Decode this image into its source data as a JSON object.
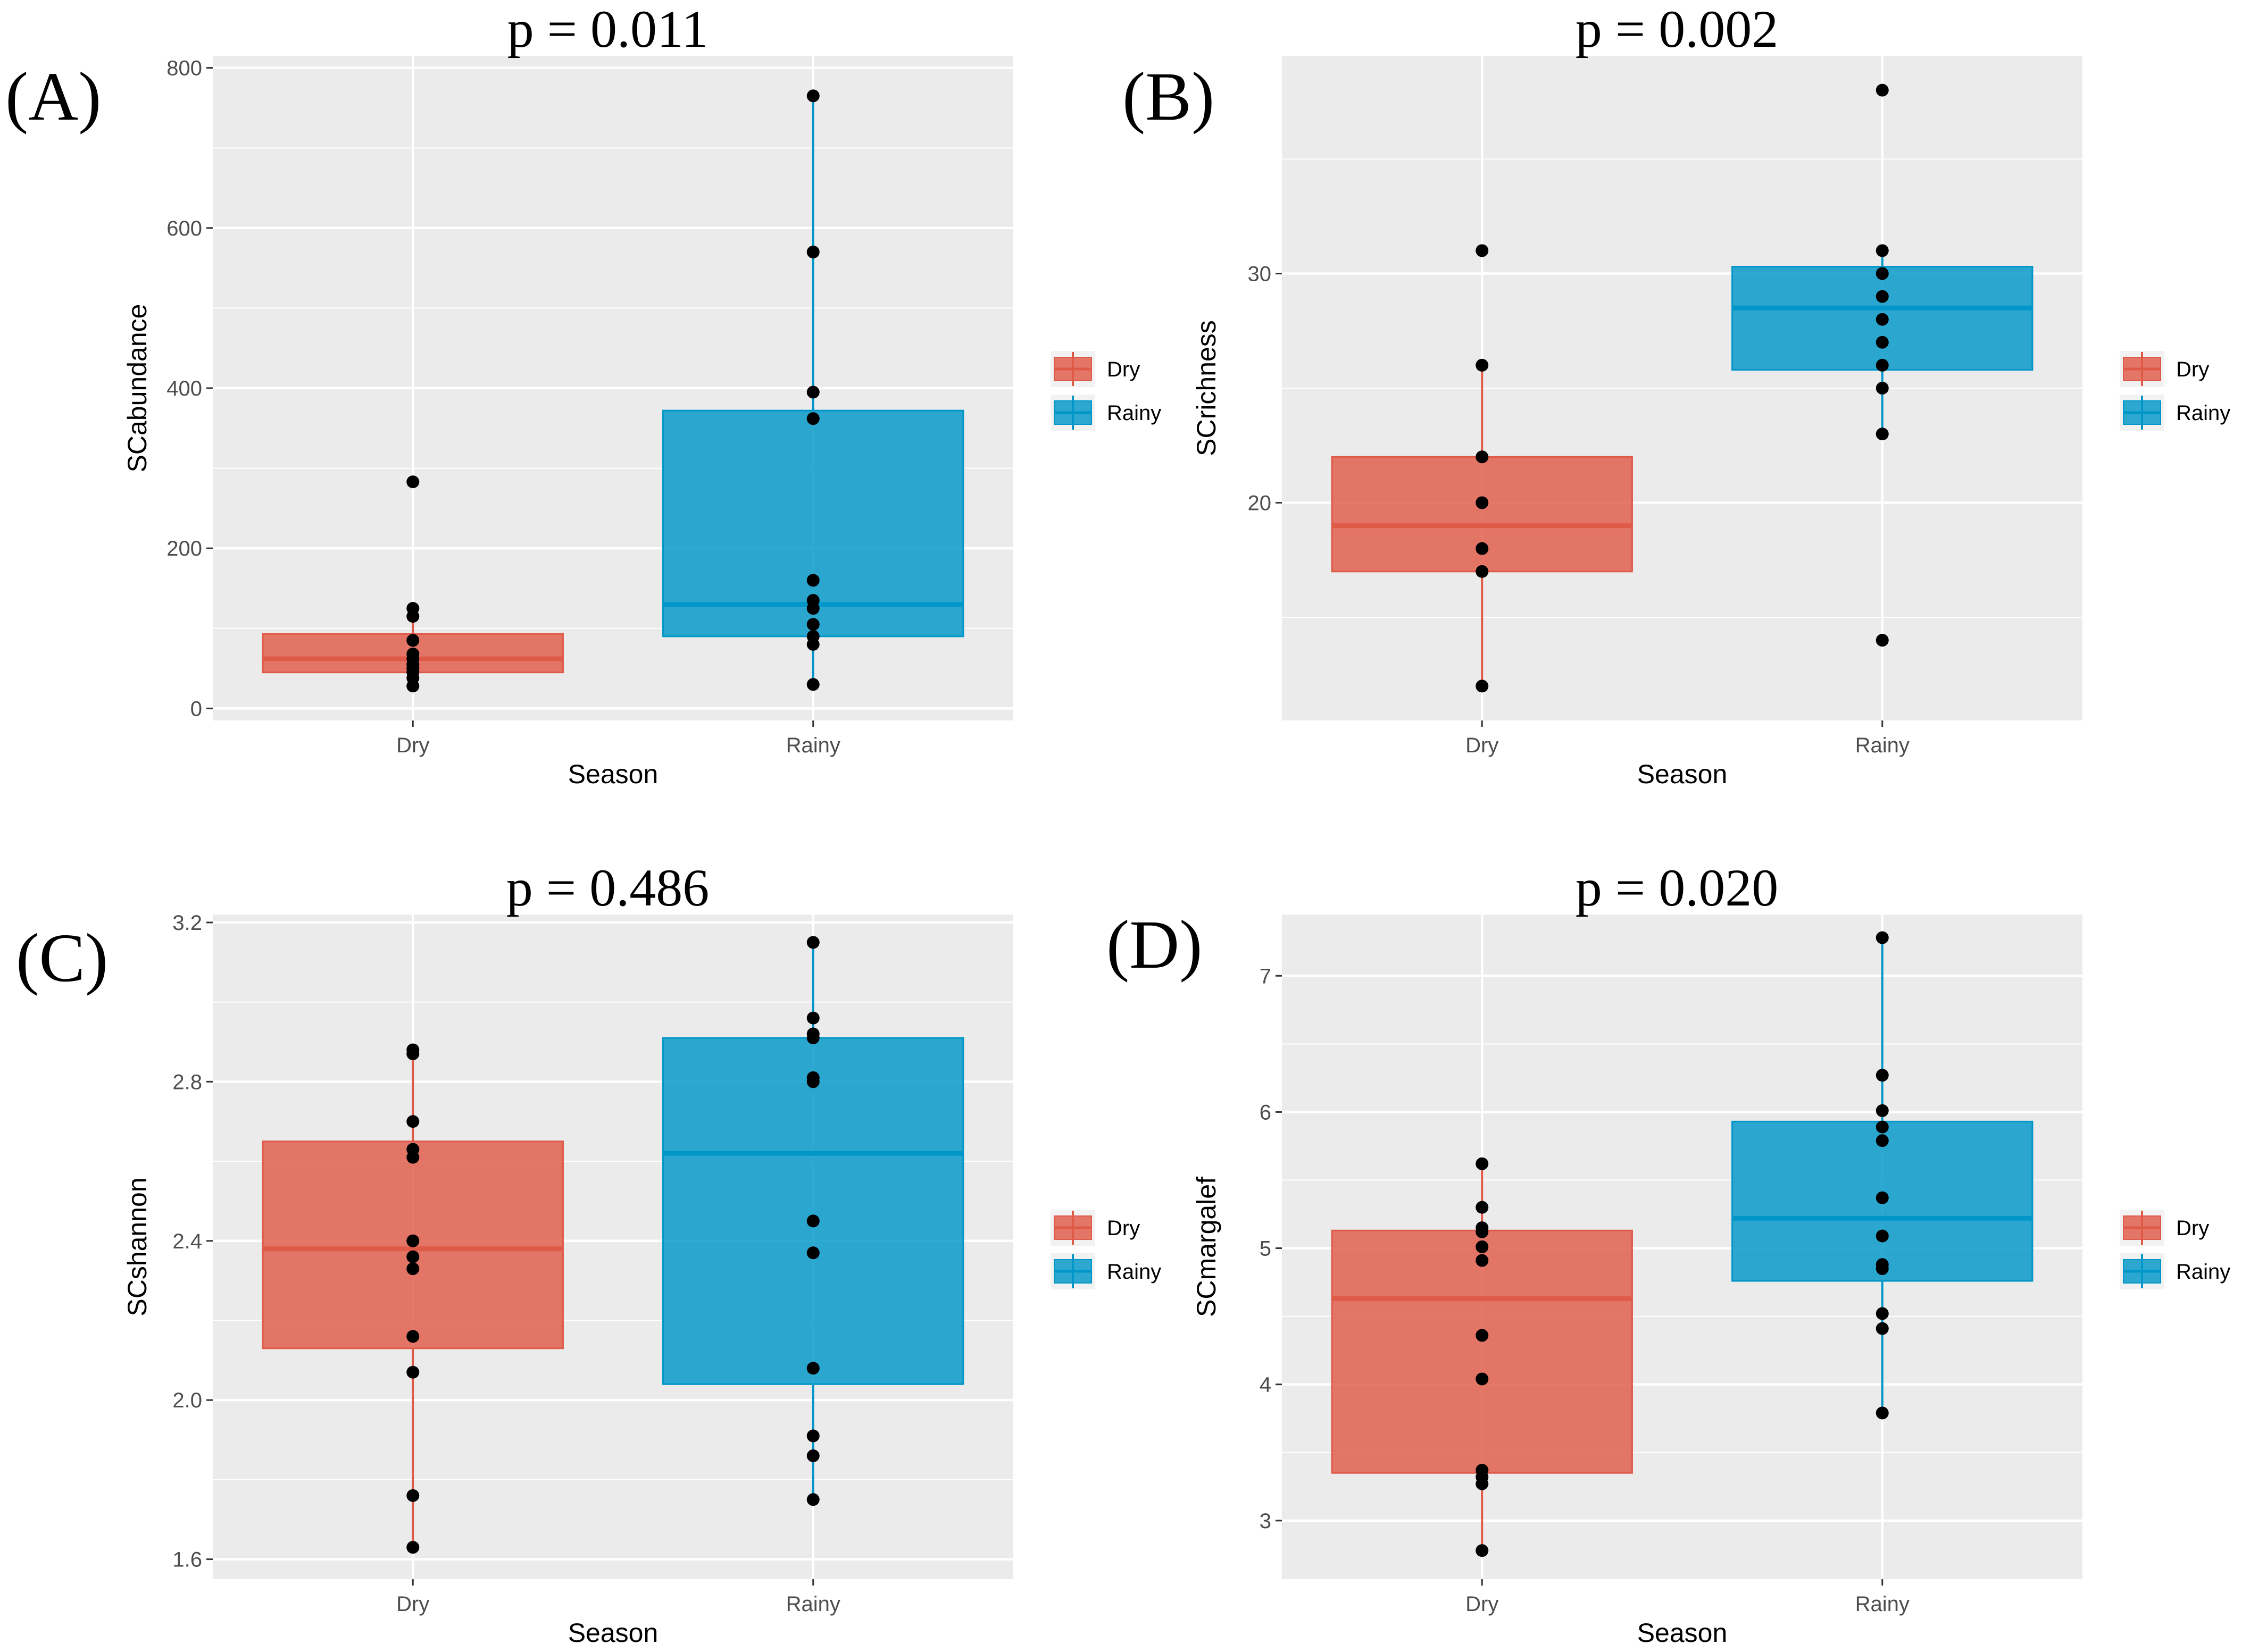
{
  "chart_data": [
    {
      "type": "box",
      "panel_label": "(A)",
      "title": "p = 0.011",
      "xlabel": "Season",
      "ylabel": "SCabundance",
      "categories": [
        "Dry",
        "Rainy"
      ],
      "ylim": [
        -15,
        815
      ],
      "yticks": [
        0,
        200,
        400,
        600,
        800
      ],
      "grid": true,
      "legend": {
        "position": "right",
        "entries": [
          "Dry",
          "Rainy"
        ]
      },
      "colors": {
        "Dry": "#e05a48",
        "Rainy": "#0096c8"
      },
      "boxes": [
        {
          "category": "Dry",
          "whisker_low": 30,
          "q1": 45,
          "median": 62,
          "q3": 93,
          "whisker_high": 110,
          "points": [
            28,
            38,
            45,
            50,
            55,
            62,
            68,
            85,
            115,
            125,
            283
          ]
        },
        {
          "category": "Rainy",
          "whisker_low": 30,
          "q1": 90,
          "median": 130,
          "q3": 372,
          "whisker_high": 765,
          "points": [
            30,
            80,
            90,
            105,
            125,
            135,
            160,
            362,
            395,
            570,
            765
          ]
        }
      ]
    },
    {
      "type": "box",
      "panel_label": "(B)",
      "title": "p = 0.002",
      "xlabel": "Season",
      "ylabel": "SCrichness",
      "categories": [
        "Dry",
        "Rainy"
      ],
      "ylim": [
        10.5,
        39.5
      ],
      "yticks": [
        20,
        30
      ],
      "grid": true,
      "legend": {
        "position": "right",
        "entries": [
          "Dry",
          "Rainy"
        ]
      },
      "colors": {
        "Dry": "#e05a48",
        "Rainy": "#0096c8"
      },
      "boxes": [
        {
          "category": "Dry",
          "whisker_low": 12,
          "q1": 17,
          "median": 19,
          "q3": 22,
          "whisker_high": 26,
          "points": [
            12,
            17,
            18,
            20,
            22,
            26,
            31
          ]
        },
        {
          "category": "Rainy",
          "whisker_low": 23,
          "q1": 25.8,
          "median": 28.5,
          "q3": 30.3,
          "whisker_high": 31,
          "points": [
            14,
            23,
            25,
            26,
            27,
            28,
            29,
            30,
            31,
            38
          ]
        }
      ]
    },
    {
      "type": "box",
      "panel_label": "(C)",
      "title": "p = 0.486",
      "xlabel": "Season",
      "ylabel": "SCshannon",
      "categories": [
        "Dry",
        "Rainy"
      ],
      "ylim": [
        1.55,
        3.22
      ],
      "yticks": [
        1.6,
        2.0,
        2.4,
        2.8,
        3.2
      ],
      "ytick_labels": [
        "1.6",
        "2.0",
        "2.4",
        "2.8",
        "3.2"
      ],
      "grid": true,
      "legend": {
        "position": "right",
        "entries": [
          "Dry",
          "Rainy"
        ]
      },
      "colors": {
        "Dry": "#e05a48",
        "Rainy": "#0096c8"
      },
      "boxes": [
        {
          "category": "Dry",
          "whisker_low": 1.63,
          "q1": 2.13,
          "median": 2.38,
          "q3": 2.65,
          "whisker_high": 2.88,
          "points": [
            1.63,
            1.76,
            2.07,
            2.16,
            2.33,
            2.36,
            2.4,
            2.61,
            2.63,
            2.7,
            2.87,
            2.88
          ]
        },
        {
          "category": "Rainy",
          "whisker_low": 1.75,
          "q1": 2.04,
          "median": 2.62,
          "q3": 2.91,
          "whisker_high": 3.15,
          "points": [
            1.75,
            1.86,
            1.91,
            2.08,
            2.37,
            2.45,
            2.8,
            2.81,
            2.91,
            2.92,
            2.96,
            3.15
          ]
        }
      ]
    },
    {
      "type": "box",
      "panel_label": "(D)",
      "title": "p = 0.020",
      "xlabel": "Season",
      "ylabel": "SCmargalef",
      "categories": [
        "Dry",
        "Rainy"
      ],
      "ylim": [
        2.57,
        7.45
      ],
      "yticks": [
        3,
        4,
        5,
        6,
        7
      ],
      "grid": true,
      "legend": {
        "position": "right",
        "entries": [
          "Dry",
          "Rainy"
        ]
      },
      "colors": {
        "Dry": "#e05a48",
        "Rainy": "#0096c8"
      },
      "boxes": [
        {
          "category": "Dry",
          "whisker_low": 2.78,
          "q1": 3.35,
          "median": 4.63,
          "q3": 5.13,
          "whisker_high": 5.62,
          "points": [
            2.78,
            3.27,
            3.32,
            3.37,
            4.04,
            4.36,
            4.91,
            5.01,
            5.12,
            5.15,
            5.3,
            5.62
          ]
        },
        {
          "category": "Rainy",
          "whisker_low": 3.79,
          "q1": 4.76,
          "median": 5.22,
          "q3": 5.93,
          "whisker_high": 7.28,
          "points": [
            3.79,
            4.41,
            4.52,
            4.85,
            4.88,
            5.09,
            5.37,
            5.79,
            5.89,
            6.01,
            6.27,
            7.28
          ]
        }
      ]
    }
  ]
}
